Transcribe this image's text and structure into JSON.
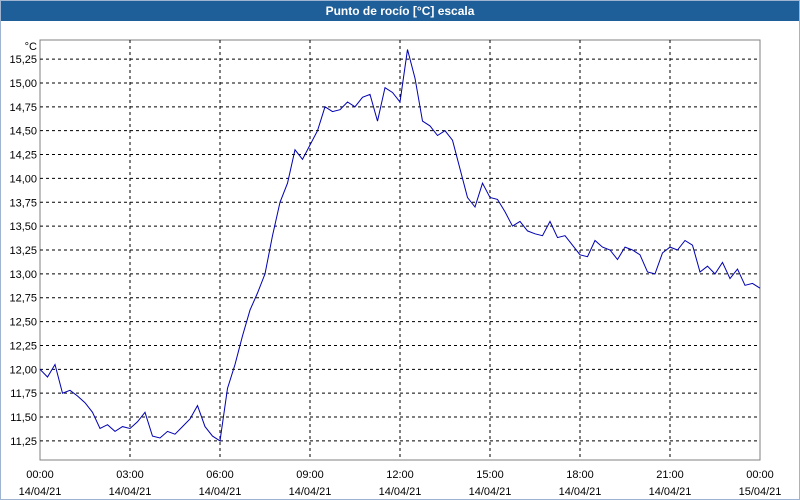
{
  "title": "Punto de rocío [°C] escala",
  "chart_data": {
    "type": "line",
    "title": "Punto de rocío [°C] escala",
    "ylabel": "°C",
    "xlabel": "",
    "ylim": [
      11.05,
      15.45
    ],
    "yticks": [
      "11,25",
      "11,50",
      "11,75",
      "12,00",
      "12,25",
      "12,50",
      "12,75",
      "13,00",
      "13,25",
      "13,50",
      "13,75",
      "14,00",
      "14,25",
      "14,50",
      "14,75",
      "15,00",
      "15,25"
    ],
    "ytick_values": [
      11.25,
      11.5,
      11.75,
      12.0,
      12.25,
      12.5,
      12.75,
      13.0,
      13.25,
      13.5,
      13.75,
      14.0,
      14.25,
      14.5,
      14.75,
      15.0,
      15.25
    ],
    "xticks": [
      {
        "time": "00:00",
        "date": "14/04/21"
      },
      {
        "time": "03:00",
        "date": "14/04/21"
      },
      {
        "time": "06:00",
        "date": "14/04/21"
      },
      {
        "time": "09:00",
        "date": "14/04/21"
      },
      {
        "time": "12:00",
        "date": "14/04/21"
      },
      {
        "time": "15:00",
        "date": "14/04/21"
      },
      {
        "time": "18:00",
        "date": "14/04/21"
      },
      {
        "time": "21:00",
        "date": "14/04/21"
      },
      {
        "time": "00:00",
        "date": "15/04/21"
      }
    ],
    "grid": true,
    "line_color": "#0000b0",
    "series": [
      {
        "x_hours": [
          0,
          0.25,
          0.5,
          0.75,
          1.0,
          1.25,
          1.5,
          1.75,
          2.0,
          2.25,
          2.5,
          2.75,
          3.0,
          3.25,
          3.5,
          3.75,
          4.0,
          4.25,
          4.5,
          4.75,
          5.0,
          5.25,
          5.5,
          5.75,
          6.0,
          6.25,
          6.5,
          6.75,
          7.0,
          7.25,
          7.5,
          7.75,
          8.0,
          8.25,
          8.5,
          8.75,
          9.0,
          9.25,
          9.5,
          9.75,
          10.0,
          10.25,
          10.5,
          10.75,
          11.0,
          11.25,
          11.5,
          11.75,
          12.0,
          12.25,
          12.5,
          12.75,
          13.0,
          13.25,
          13.5,
          13.75,
          14.0,
          14.25,
          14.5,
          14.75,
          15.0,
          15.25,
          15.5,
          15.75,
          16.0,
          16.25,
          16.5,
          16.75,
          17.0,
          17.25,
          17.5,
          17.75,
          18.0,
          18.25,
          18.5,
          18.75,
          19.0,
          19.25,
          19.5,
          19.75,
          20.0,
          20.25,
          20.5,
          20.75,
          21.0,
          21.25,
          21.5,
          21.75,
          22.0,
          22.25,
          22.5,
          22.75,
          23.0,
          23.25,
          23.5,
          23.75,
          24.0
        ],
        "values": [
          12.0,
          11.92,
          12.05,
          11.75,
          11.78,
          11.72,
          11.65,
          11.55,
          11.38,
          11.42,
          11.35,
          11.4,
          11.38,
          11.45,
          11.55,
          11.3,
          11.28,
          11.35,
          11.32,
          11.4,
          11.48,
          11.62,
          11.4,
          11.3,
          11.25,
          11.8,
          12.05,
          12.35,
          12.62,
          12.8,
          13.0,
          13.4,
          13.75,
          13.95,
          14.3,
          14.2,
          14.35,
          14.5,
          14.75,
          14.7,
          14.72,
          14.8,
          14.75,
          14.85,
          14.88,
          14.6,
          14.95,
          14.9,
          14.8,
          15.35,
          15.05,
          14.6,
          14.55,
          14.45,
          14.5,
          14.4,
          14.1,
          13.8,
          13.7,
          13.95,
          13.8,
          13.78,
          13.65,
          13.5,
          13.55,
          13.45,
          13.42,
          13.4,
          13.55,
          13.38,
          13.4,
          13.3,
          13.2,
          13.18,
          13.35,
          13.28,
          13.25,
          13.15,
          13.28,
          13.25,
          13.2,
          13.02,
          13.0,
          13.22,
          13.28,
          13.25,
          13.35,
          13.3,
          13.02,
          13.08,
          13.0,
          13.12,
          12.95,
          13.05,
          12.88,
          12.9,
          12.85
        ]
      }
    ]
  }
}
